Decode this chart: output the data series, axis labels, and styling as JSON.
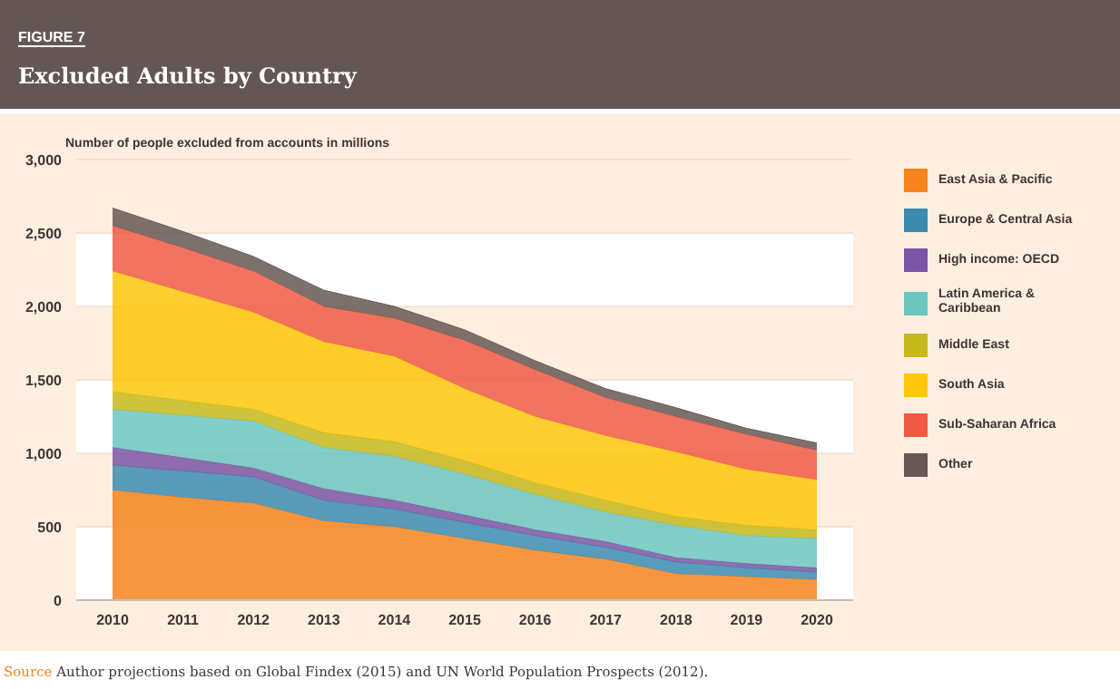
{
  "chart_data": {
    "type": "area",
    "stacked": true,
    "subtitle": "FIGURE 7",
    "title": "Excluded Adults by Country",
    "ylabel": "Number of people excluded from accounts in millions",
    "annotations": [
      "Source Author projections based on Global Findex (2015) and UN World Population Prospects (2012)."
    ],
    "categories": [
      "2010",
      "2011",
      "2012",
      "2013",
      "2014",
      "2015",
      "2016",
      "2017",
      "2018",
      "2019",
      "2020"
    ],
    "series": [
      {
        "name": "East Asia & Pacific",
        "color": "#f5841f",
        "values": [
          750,
          700,
          660,
          540,
          500,
          420,
          340,
          280,
          180,
          160,
          140
        ]
      },
      {
        "name": "Europe & Central Asia",
        "color": "#3b8bb0",
        "values": [
          170,
          180,
          180,
          140,
          120,
          110,
          100,
          80,
          80,
          60,
          50
        ]
      },
      {
        "name": "High income: OECD",
        "color": "#7b55a5",
        "values": [
          120,
          90,
          60,
          80,
          60,
          50,
          40,
          40,
          30,
          30,
          30
        ]
      },
      {
        "name": "Latin America & Caribbean",
        "color": "#6cc5bf",
        "values": [
          260,
          290,
          320,
          280,
          300,
          280,
          240,
          200,
          220,
          190,
          200
        ]
      },
      {
        "name": "Middle East",
        "color": "#c5b81b",
        "values": [
          120,
          100,
          80,
          100,
          100,
          90,
          80,
          80,
          60,
          70,
          60
        ]
      },
      {
        "name": "South Asia",
        "color": "#fdc60a",
        "values": [
          820,
          740,
          660,
          620,
          580,
          490,
          450,
          440,
          440,
          380,
          340
        ]
      },
      {
        "name": "Sub-Saharan Africa",
        "color": "#ef5a44",
        "values": [
          310,
          300,
          280,
          240,
          260,
          330,
          320,
          260,
          240,
          240,
          200
        ]
      },
      {
        "name": "Other",
        "color": "#665855",
        "values": [
          120,
          110,
          100,
          110,
          80,
          70,
          60,
          60,
          60,
          40,
          50
        ]
      }
    ],
    "ylim": [
      0,
      3000
    ],
    "yticks": [
      0,
      {
        "value": 500,
        "label": "500"
      },
      {
        "value": 1000,
        "label": "1,000"
      },
      {
        "value": 1500,
        "label": "1,500"
      },
      {
        "value": 2000,
        "label": "2,000"
      },
      {
        "value": 2500,
        "label": "2,500"
      },
      {
        "value": 3000,
        "label": "3,000"
      }
    ],
    "grid": "y",
    "legend": "right"
  }
}
